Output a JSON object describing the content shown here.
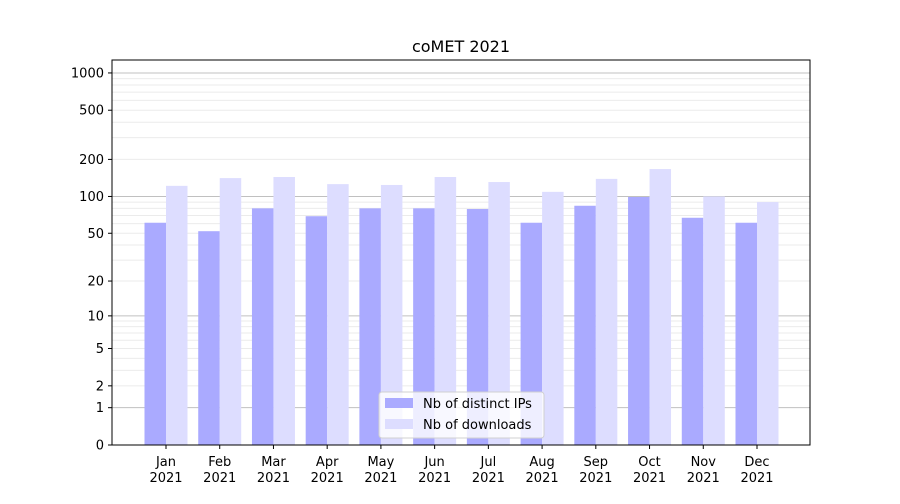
{
  "chart_data": {
    "type": "bar",
    "title": "coMET 2021",
    "xlabel": "",
    "ylabel": "",
    "yscale": "log(1+y)",
    "ylim": [
      0,
      1272
    ],
    "yticks": [
      0,
      1,
      2,
      5,
      10,
      20,
      50,
      100,
      200,
      500,
      1000
    ],
    "major_grid": [
      1,
      10,
      100,
      1000
    ],
    "minor_grid": [
      2,
      3,
      4,
      5,
      6,
      7,
      8,
      9,
      20,
      30,
      40,
      50,
      60,
      70,
      80,
      90,
      200,
      300,
      400,
      500,
      600,
      700,
      800,
      900
    ],
    "grid": true,
    "legend_position": "lower-center",
    "categories": [
      "Jan\n2021",
      "Feb\n2021",
      "Mar\n2021",
      "Apr\n2021",
      "May\n2021",
      "Jun\n2021",
      "Jul\n2021",
      "Aug\n2021",
      "Sep\n2021",
      "Oct\n2021",
      "Nov\n2021",
      "Dec\n2021"
    ],
    "series": [
      {
        "name": "Nb of distinct IPs",
        "color": "#aaaaff",
        "values": [
          61,
          52,
          80,
          69,
          80,
          80,
          79,
          61,
          84,
          99,
          67,
          61
        ]
      },
      {
        "name": "Nb of downloads",
        "color": "#ddddff",
        "values": [
          122,
          141,
          144,
          126,
          124,
          144,
          131,
          109,
          139,
          167,
          100,
          90
        ]
      }
    ]
  }
}
